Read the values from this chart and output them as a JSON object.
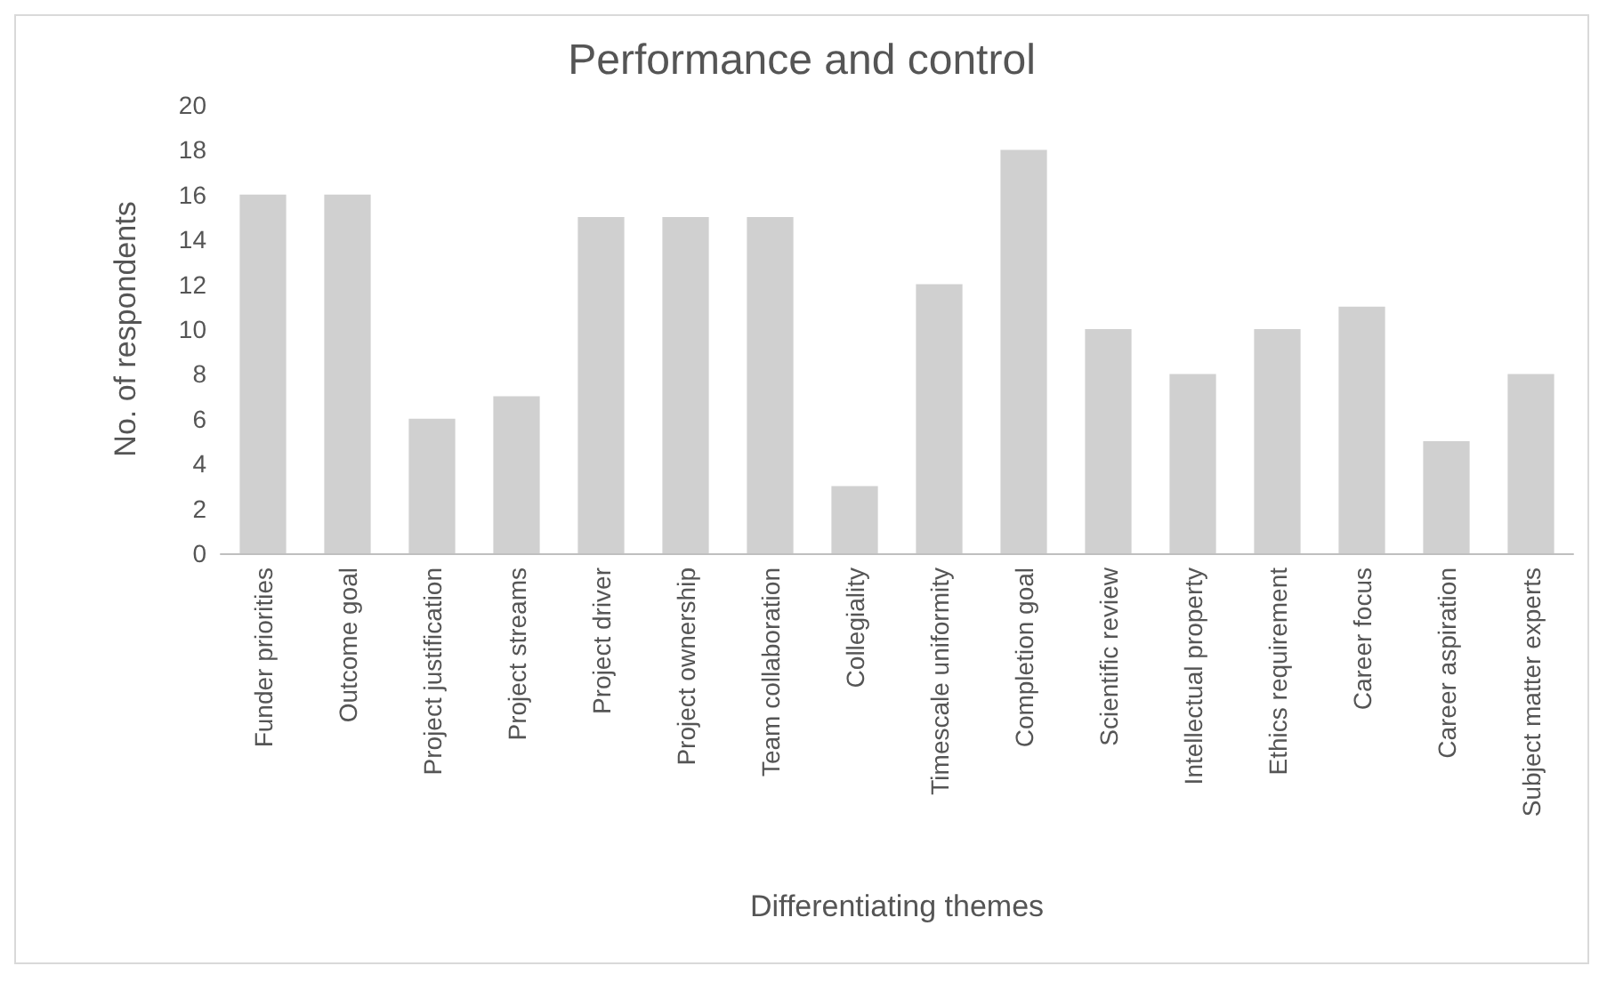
{
  "chart_data": {
    "type": "bar",
    "title": "Performance and control",
    "xlabel": "Differentiating themes",
    "ylabel": "No. of respondents",
    "categories": [
      "Funder priorities",
      "Outcome goal",
      "Project justification",
      "Project streams",
      "Project driver",
      "Project ownership",
      "Team collaboration",
      "Collegiality",
      "Timescale uniformity",
      "Completion goal",
      "Scientific review",
      "Intellectual property",
      "Ethics requirement",
      "Career focus",
      "Career aspiration",
      "Subject matter experts"
    ],
    "values": [
      16,
      16,
      6,
      7,
      15,
      15,
      15,
      3,
      12,
      18,
      10,
      8,
      10,
      11,
      5,
      8
    ],
    "color": "#d0d0d0",
    "ylim": [
      0,
      20
    ],
    "yticks": [
      0,
      2,
      4,
      6,
      8,
      10,
      12,
      14,
      16,
      18,
      20
    ],
    "grid": false
  }
}
